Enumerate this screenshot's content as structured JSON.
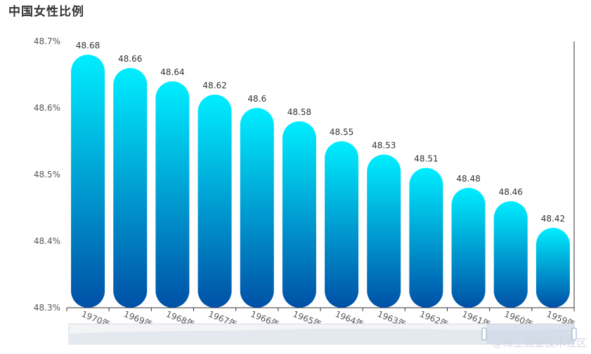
{
  "chart_data": {
    "type": "bar",
    "title": "中国女性比例",
    "categories": [
      "1970年",
      "1969年",
      "1968年",
      "1967年",
      "1966年",
      "1965年",
      "1964年",
      "1963年",
      "1962年",
      "1961年",
      "1960年",
      "1959年"
    ],
    "values": [
      48.68,
      48.66,
      48.64,
      48.62,
      48.6,
      48.58,
      48.55,
      48.53,
      48.51,
      48.48,
      48.46,
      48.42
    ],
    "y_ticks": [
      "48.3%",
      "48.4%",
      "48.5%",
      "48.6%",
      "48.7%"
    ],
    "ylim": [
      48.3,
      48.7
    ],
    "xlabel": "",
    "ylabel": "",
    "grid": false,
    "bar_gradient": [
      "#00eeff",
      "#0050a6"
    ],
    "has_data_zoom": true
  },
  "watermark": "@稀土掘金技术社区"
}
